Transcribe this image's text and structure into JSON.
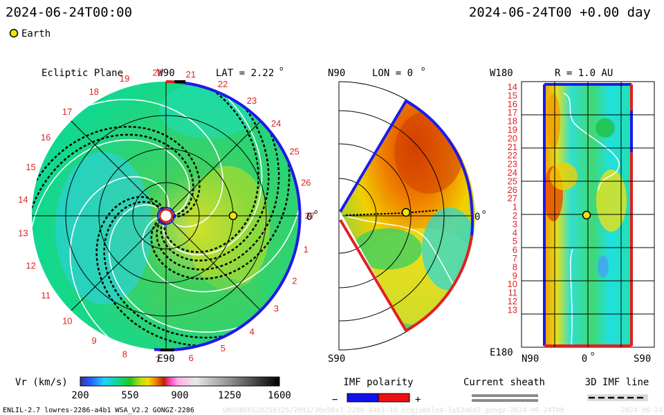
{
  "header": {
    "time_left": "2024-06-24T00:00",
    "time_right": "2024-06-24T00 +0.00 day",
    "legend_label": "Earth",
    "legend_color": "#f2e20a"
  },
  "panels": {
    "ecliptic": {
      "title": "Ecliptic Plane",
      "top_label": "W90",
      "lat_label": "LAT = 2.22",
      "lat_deg": "o",
      "right_label": "0",
      "right_deg": "o",
      "bottom_label": "E90",
      "earth_position": {
        "r_au": 1.0,
        "lon_deg": 0
      },
      "carrington_rotations": [
        "1",
        "2",
        "3",
        "4",
        "5",
        "6",
        "7",
        "8",
        "9",
        "10",
        "11",
        "12",
        "13",
        "14",
        "15",
        "16",
        "17",
        "18",
        "19",
        "20",
        "21",
        "22",
        "23",
        "24",
        "25",
        "26",
        "27"
      ]
    },
    "meridional": {
      "top_label": "N90",
      "lon_label": "LON = 0",
      "lon_deg": "o",
      "right_label": "0",
      "right_deg": "o",
      "bottom_label": "S90"
    },
    "lat_lon": {
      "top_left_label": "W180",
      "r_label": "R = 1.0 AU",
      "bottom_left_label": "E180",
      "x_labels": [
        "N90",
        "0",
        "S90"
      ],
      "x_zero_deg": "o",
      "rows": [
        "14",
        "15",
        "16",
        "17",
        "18",
        "19",
        "20",
        "21",
        "22",
        "23",
        "24",
        "25",
        "26",
        "27",
        "1",
        "2",
        "3",
        "4",
        "5",
        "6",
        "7",
        "8",
        "9",
        "10",
        "11",
        "12",
        "13"
      ]
    }
  },
  "colorbar": {
    "label": "Vr (km/s)",
    "ticks": [
      "200",
      "550",
      "900",
      "1250",
      "1600"
    ],
    "min": 200,
    "max": 1600
  },
  "imf_polarity": {
    "label": "IMF polarity",
    "minus": "−",
    "plus": "+",
    "negative_color": "#1010ee",
    "positive_color": "#ee1010"
  },
  "current_sheath": {
    "label": "Current sheath"
  },
  "imf_line": {
    "label": "3D IMF line"
  },
  "footer": {
    "model": "ENLIL-2.7 lowres-2286-a4b1 WSA_V2.2 GONGZ-2286",
    "run_id": "UNSUBDEG20250325/2091/30x90x1 2286-a4b1-18-ncqjumbled-1g53d6d2 gongz-2024-06-24T00",
    "right_stamp": "2024-06-24"
  }
}
